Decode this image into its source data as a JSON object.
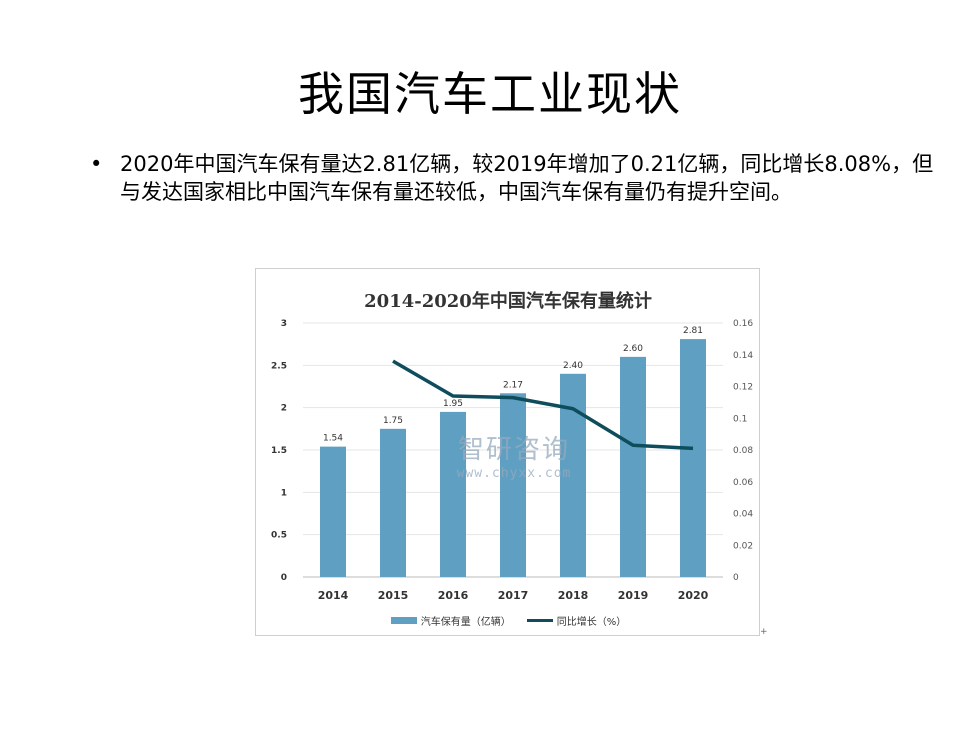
{
  "slide": {
    "title": "我国汽车工业现状",
    "bullet": "2020年中国汽车保有量达2.81亿辆，较2019年增加了0.21亿辆，同比增长8.08%，但与发达国家相比中国汽车保有量还较低，中国汽车保有量仍有提升空间。",
    "bullet_symbol": "•",
    "corner_mark": "+"
  },
  "watermark": {
    "logo": "智研咨询",
    "url": "www.chyxx.com"
  },
  "chart_data": {
    "type": "bar",
    "title": "2014-2020年中国汽车保有量统计",
    "categories": [
      "2014",
      "2015",
      "2016",
      "2017",
      "2018",
      "2019",
      "2020"
    ],
    "series": [
      {
        "name": "汽车保有量（亿辆）",
        "type": "bar",
        "axis": "left",
        "values": [
          1.54,
          1.75,
          1.95,
          2.17,
          2.4,
          2.6,
          2.81
        ],
        "labels": [
          "1.54",
          "1.75",
          "1.95",
          "2.17",
          "2.40",
          "2.60",
          "2.81"
        ],
        "color": "#5fa0c2"
      },
      {
        "name": "同比增长（%）",
        "type": "line",
        "axis": "right",
        "values": [
          null,
          0.136,
          0.114,
          0.113,
          0.106,
          0.083,
          0.081
        ],
        "color": "#0f4c5c"
      }
    ],
    "ylim": [
      0,
      3
    ],
    "yticks": [
      "0",
      "0.5",
      "1",
      "1.5",
      "2",
      "2.5",
      "3"
    ],
    "y2lim": [
      0,
      0.16
    ],
    "y2ticks": [
      "0",
      "0.02",
      "0.04",
      "0.06",
      "0.08",
      "0.1",
      "0.12",
      "0.14",
      "0.16"
    ],
    "grid": true,
    "legend": "bottom"
  }
}
